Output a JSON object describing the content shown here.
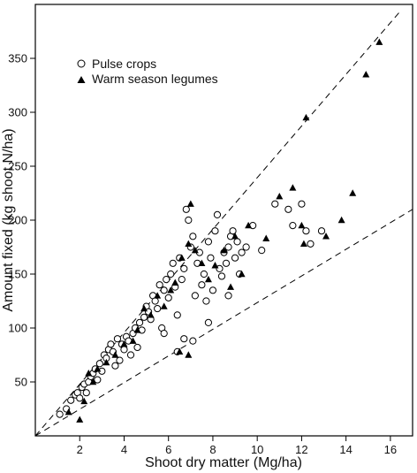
{
  "chart_data": {
    "type": "scatter",
    "title": "",
    "xlabel": "Shoot dry matter (Mg/ha)",
    "ylabel": "Amount fixed (kg shoot N/ha)",
    "xlim": [
      0,
      17
    ],
    "ylim": [
      0,
      400
    ],
    "xticks": [
      2,
      4,
      6,
      8,
      10,
      12,
      14,
      16
    ],
    "yticks": [
      50,
      100,
      150,
      200,
      250,
      300,
      350
    ],
    "yticklabels": [
      "50",
      "100",
      "150",
      "200",
      "250",
      "300",
      "350"
    ],
    "grid": false,
    "legend_position": "top-left",
    "series": [
      {
        "name": "Pulse crops",
        "marker": "open-circle",
        "color": "#000000",
        "points": [
          [
            1.1,
            20
          ],
          [
            1.4,
            25
          ],
          [
            1.6,
            33
          ],
          [
            1.8,
            38
          ],
          [
            1.9,
            40
          ],
          [
            2.0,
            35
          ],
          [
            2.1,
            45
          ],
          [
            2.2,
            48
          ],
          [
            2.3,
            40
          ],
          [
            2.4,
            50
          ],
          [
            2.5,
            55
          ],
          [
            2.6,
            58
          ],
          [
            2.7,
            62
          ],
          [
            2.8,
            52
          ],
          [
            2.9,
            67
          ],
          [
            3.0,
            60
          ],
          [
            3.1,
            75
          ],
          [
            3.2,
            72
          ],
          [
            3.3,
            80
          ],
          [
            3.4,
            85
          ],
          [
            3.5,
            78
          ],
          [
            3.6,
            65
          ],
          [
            3.7,
            90
          ],
          [
            3.8,
            70
          ],
          [
            3.9,
            85
          ],
          [
            4.0,
            80
          ],
          [
            4.1,
            92
          ],
          [
            4.2,
            88
          ],
          [
            4.3,
            75
          ],
          [
            4.4,
            95
          ],
          [
            4.5,
            100
          ],
          [
            4.6,
            82
          ],
          [
            4.7,
            105
          ],
          [
            4.8,
            98
          ],
          [
            4.9,
            110
          ],
          [
            5.0,
            120
          ],
          [
            5.1,
            115
          ],
          [
            5.2,
            108
          ],
          [
            5.3,
            130
          ],
          [
            5.4,
            125
          ],
          [
            5.5,
            118
          ],
          [
            5.6,
            140
          ],
          [
            5.7,
            100
          ],
          [
            5.8,
            135
          ],
          [
            5.9,
            145
          ],
          [
            6.0,
            128
          ],
          [
            6.1,
            150
          ],
          [
            6.2,
            160
          ],
          [
            6.3,
            138
          ],
          [
            6.4,
            112
          ],
          [
            6.5,
            165
          ],
          [
            6.6,
            145
          ],
          [
            6.7,
            155
          ],
          [
            6.8,
            210
          ],
          [
            6.9,
            200
          ],
          [
            7.0,
            175
          ],
          [
            7.1,
            185
          ],
          [
            7.2,
            130
          ],
          [
            7.3,
            160
          ],
          [
            7.4,
            170
          ],
          [
            7.5,
            140
          ],
          [
            7.6,
            150
          ],
          [
            7.7,
            125
          ],
          [
            7.8,
            180
          ],
          [
            7.9,
            165
          ],
          [
            8.0,
            135
          ],
          [
            8.1,
            190
          ],
          [
            8.2,
            205
          ],
          [
            8.3,
            155
          ],
          [
            8.4,
            148
          ],
          [
            8.5,
            170
          ],
          [
            8.6,
            160
          ],
          [
            8.7,
            175
          ],
          [
            8.8,
            185
          ],
          [
            8.9,
            190
          ],
          [
            9.0,
            165
          ],
          [
            9.1,
            180
          ],
          [
            9.2,
            150
          ],
          [
            9.3,
            170
          ],
          [
            9.5,
            175
          ],
          [
            9.8,
            195
          ],
          [
            10.2,
            172
          ],
          [
            10.8,
            215
          ],
          [
            11.4,
            210
          ],
          [
            11.6,
            195
          ],
          [
            12.0,
            215
          ],
          [
            12.2,
            190
          ],
          [
            12.4,
            178
          ],
          [
            12.9,
            190
          ],
          [
            6.4,
            78
          ],
          [
            6.7,
            90
          ],
          [
            7.1,
            88
          ],
          [
            5.8,
            95
          ],
          [
            7.8,
            105
          ],
          [
            8.7,
            130
          ]
        ]
      },
      {
        "name": "Warm season legumes",
        "marker": "filled-triangle",
        "color": "#000000",
        "points": [
          [
            1.5,
            22
          ],
          [
            2.0,
            15
          ],
          [
            2.2,
            32
          ],
          [
            2.4,
            58
          ],
          [
            2.6,
            50
          ],
          [
            2.8,
            62
          ],
          [
            3.2,
            68
          ],
          [
            3.6,
            75
          ],
          [
            4.0,
            85
          ],
          [
            4.4,
            88
          ],
          [
            4.6,
            98
          ],
          [
            4.9,
            118
          ],
          [
            5.2,
            112
          ],
          [
            5.5,
            130
          ],
          [
            5.8,
            120
          ],
          [
            6.1,
            135
          ],
          [
            6.3,
            142
          ],
          [
            6.6,
            165
          ],
          [
            6.9,
            178
          ],
          [
            7.0,
            215
          ],
          [
            7.2,
            172
          ],
          [
            7.5,
            160
          ],
          [
            7.8,
            145
          ],
          [
            8.1,
            158
          ],
          [
            8.5,
            172
          ],
          [
            8.8,
            138
          ],
          [
            9.0,
            185
          ],
          [
            9.3,
            150
          ],
          [
            9.6,
            195
          ],
          [
            10.4,
            183
          ],
          [
            11.0,
            222
          ],
          [
            11.6,
            230
          ],
          [
            12.0,
            195
          ],
          [
            12.1,
            178
          ],
          [
            12.2,
            295
          ],
          [
            13.1,
            185
          ],
          [
            13.8,
            200
          ],
          [
            14.3,
            225
          ],
          [
            14.9,
            335
          ],
          [
            15.5,
            365
          ],
          [
            6.5,
            78
          ],
          [
            6.9,
            75
          ]
        ]
      }
    ],
    "reference_lines": [
      {
        "style": "dashed",
        "from": [
          0,
          0
        ],
        "to": [
          16.5,
          395
        ]
      },
      {
        "style": "dashed",
        "from": [
          0,
          0
        ],
        "to": [
          17,
          210
        ]
      }
    ]
  }
}
